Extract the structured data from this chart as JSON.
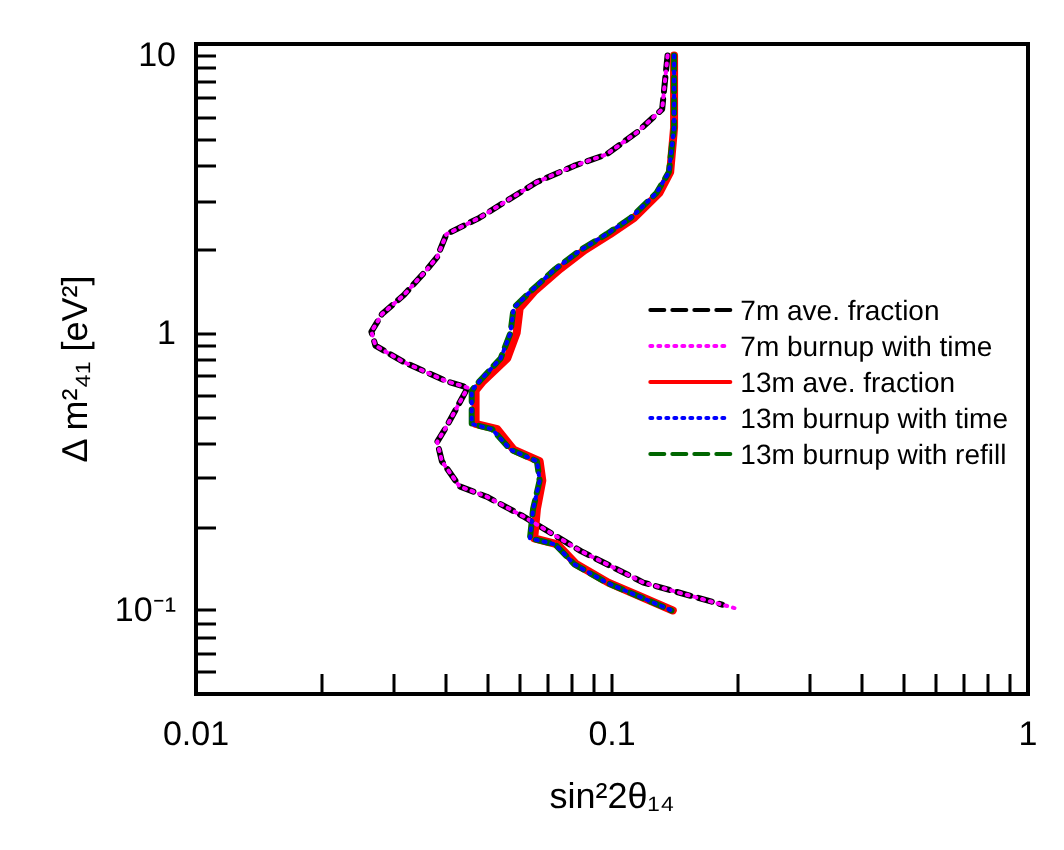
{
  "chart_data": {
    "type": "line",
    "xlabel": "sin²2θ₁₄",
    "ylabel": "Δ m²₄₁ [eV²]",
    "log": "xy",
    "xlim": [
      0.01,
      1
    ],
    "ylim": [
      0.05,
      11
    ],
    "xticks": [
      0.01,
      {
        "value": 0.02,
        "label": null
      },
      {
        "value": 0.03,
        "label": null
      },
      {
        "value": 0.04,
        "label": null
      },
      {
        "value": 0.05,
        "label": null
      },
      {
        "value": 0.06,
        "label": null
      },
      {
        "value": 0.07,
        "label": null
      },
      {
        "value": 0.08,
        "label": null
      },
      {
        "value": 0.09,
        "label": null
      },
      0.1,
      {
        "value": 0.2,
        "label": null
      },
      {
        "value": 0.3,
        "label": null
      },
      {
        "value": 0.4,
        "label": null
      },
      {
        "value": 0.5,
        "label": null
      },
      {
        "value": 0.6,
        "label": null
      },
      {
        "value": 0.7,
        "label": null
      },
      {
        "value": 0.8,
        "label": null
      },
      {
        "value": 0.9,
        "label": null
      },
      1
    ],
    "yticks": [
      {
        "value": 0.06,
        "label": null
      },
      {
        "value": 0.07,
        "label": null
      },
      {
        "value": 0.08,
        "label": null
      },
      {
        "value": 0.09,
        "label": null
      },
      {
        "value": 0.1,
        "label": "10⁻¹"
      },
      {
        "value": 0.2,
        "label": null
      },
      {
        "value": 0.3,
        "label": null
      },
      {
        "value": 0.4,
        "label": null
      },
      {
        "value": 0.5,
        "label": null
      },
      {
        "value": 0.6,
        "label": null
      },
      {
        "value": 0.7,
        "label": null
      },
      {
        "value": 0.8,
        "label": null
      },
      {
        "value": 0.9,
        "label": null
      },
      1,
      {
        "value": 2,
        "label": null
      },
      {
        "value": 3,
        "label": null
      },
      {
        "value": 4,
        "label": null
      },
      {
        "value": 5,
        "label": null
      },
      {
        "value": 6,
        "label": null
      },
      {
        "value": 7,
        "label": null
      },
      {
        "value": 8,
        "label": null
      },
      {
        "value": 9,
        "label": null
      },
      10
    ],
    "grid": false,
    "legend": "right",
    "marker": "none",
    "series": [
      {
        "name": "7m ave. fraction",
        "color": "#000000",
        "line_style": "dashed",
        "x": [
          0.136,
          0.132,
          0.115,
          0.097,
          0.081,
          0.066,
          0.048,
          0.04,
          0.038,
          0.036,
          0.0316,
          0.028,
          0.0264,
          0.027,
          0.0316,
          0.04,
          0.045,
          0.04,
          0.038,
          0.039,
          0.043,
          0.05,
          0.061,
          0.084,
          0.119,
          0.184
        ],
        "values": [
          10,
          6.4,
          5.3,
          4.4,
          4,
          3.5,
          2.6,
          2.27,
          1.88,
          1.7,
          1.37,
          1.17,
          1.01,
          0.9,
          0.785,
          0.67,
          0.635,
          0.46,
          0.405,
          0.345,
          0.28,
          0.257,
          0.219,
          0.164,
          0.126,
          0.105
        ]
      },
      {
        "name": "7m burnup with time",
        "color": "#ff00ff",
        "line_style": "dotted",
        "x": [
          0.136,
          0.132,
          0.115,
          0.097,
          0.081,
          0.066,
          0.048,
          0.04,
          0.038,
          0.036,
          0.0316,
          0.028,
          0.0264,
          0.027,
          0.0316,
          0.04,
          0.045,
          0.04,
          0.038,
          0.039,
          0.043,
          0.05,
          0.061,
          0.084,
          0.119,
          0.197
        ],
        "values": [
          10,
          6.4,
          5.3,
          4.4,
          4,
          3.5,
          2.6,
          2.27,
          1.88,
          1.7,
          1.37,
          1.17,
          1.01,
          0.9,
          0.785,
          0.67,
          0.635,
          0.46,
          0.405,
          0.345,
          0.28,
          0.257,
          0.219,
          0.164,
          0.126,
          0.102
        ]
      },
      {
        "name": "13m ave. fraction",
        "color": "#ff0000",
        "line_style": "solid",
        "x": [
          0.141,
          0.141,
          0.138,
          0.13,
          0.113,
          0.099,
          0.086,
          0.075,
          0.065,
          0.06,
          0.059,
          0.056,
          0.049,
          0.047,
          0.047,
          0.053,
          0.058,
          0.067,
          0.068,
          0.066,
          0.065,
          0.074,
          0.082,
          0.098,
          0.116,
          0.14
        ],
        "values": [
          10,
          5.5,
          3.8,
          3.2,
          2.6,
          2.27,
          1.99,
          1.7,
          1.41,
          1.23,
          1,
          0.81,
          0.67,
          0.62,
          0.47,
          0.45,
          0.38,
          0.345,
          0.294,
          0.232,
          0.182,
          0.173,
          0.147,
          0.126,
          0.113,
          0.1
        ]
      },
      {
        "name": "13m burnup with time",
        "color": "#0000ff",
        "line_style": "dotted",
        "x": [
          0.141,
          0.141,
          0.137,
          0.128,
          0.111,
          0.097,
          0.084,
          0.073,
          0.0636,
          0.058,
          0.057,
          0.054,
          0.048,
          0.046,
          0.046,
          0.0515,
          0.057,
          0.066,
          0.067,
          0.0646,
          0.0635,
          0.073,
          0.081,
          0.097,
          0.115,
          0.139
        ],
        "values": [
          10,
          5.5,
          3.8,
          3.2,
          2.6,
          2.27,
          1.99,
          1.7,
          1.41,
          1.23,
          1,
          0.81,
          0.67,
          0.62,
          0.47,
          0.45,
          0.38,
          0.345,
          0.294,
          0.232,
          0.182,
          0.173,
          0.147,
          0.126,
          0.113,
          0.1
        ]
      },
      {
        "name": "13m burnup with refill",
        "color": "#006600",
        "line_style": "dashed",
        "x": [
          0.141,
          0.141,
          0.137,
          0.128,
          0.111,
          0.097,
          0.084,
          0.073,
          0.0636,
          0.058,
          0.057,
          0.054,
          0.048,
          0.046,
          0.046,
          0.0515,
          0.057,
          0.066,
          0.067,
          0.0646,
          0.0635,
          0.073,
          0.081,
          0.097,
          0.115,
          0.139
        ],
        "values": [
          10,
          5.5,
          3.8,
          3.2,
          2.6,
          2.27,
          1.99,
          1.7,
          1.41,
          1.23,
          1,
          0.81,
          0.67,
          0.62,
          0.47,
          0.45,
          0.38,
          0.345,
          0.294,
          0.232,
          0.182,
          0.173,
          0.147,
          0.126,
          0.113,
          0.1
        ]
      }
    ]
  }
}
